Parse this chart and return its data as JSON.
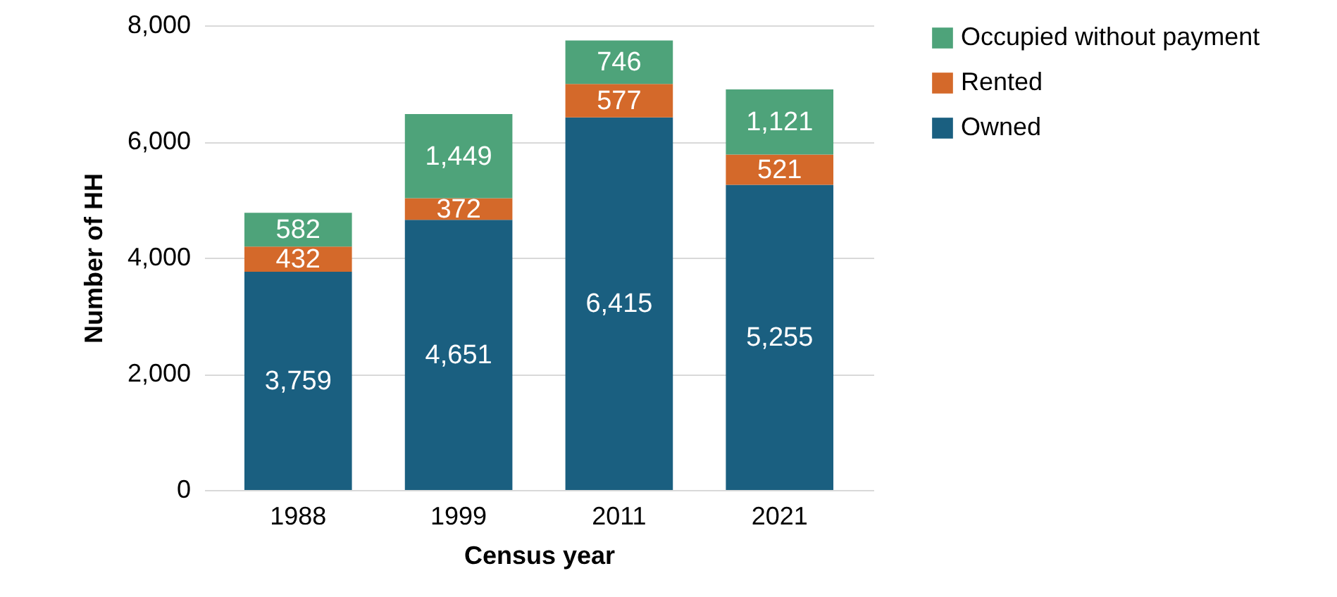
{
  "chart_data": {
    "type": "bar",
    "stacked": true,
    "xlabel": "Census year",
    "ylabel": "Number of HH",
    "categories": [
      "1988",
      "1999",
      "2011",
      "2021"
    ],
    "series": [
      {
        "name": "Owned",
        "color": "#1a5f80",
        "values": [
          3759,
          4651,
          6415,
          5255
        ],
        "value_labels": [
          "3,759",
          "4,651",
          "6,415",
          "5,255"
        ]
      },
      {
        "name": "Rented",
        "color": "#d4692a",
        "values": [
          432,
          372,
          577,
          521
        ],
        "value_labels": [
          "432",
          "372",
          "577",
          "521"
        ]
      },
      {
        "name": "Occupied without payment",
        "color": "#4ea37a",
        "values": [
          582,
          1449,
          746,
          1121
        ],
        "value_labels": [
          "582",
          "1,449",
          "746",
          "1,121"
        ]
      }
    ],
    "ylim": [
      0,
      8000
    ],
    "yticks": [
      {
        "value": 0,
        "label": "0"
      },
      {
        "value": 2000,
        "label": "2,000"
      },
      {
        "value": 4000,
        "label": "4,000"
      },
      {
        "value": 6000,
        "label": "6,000"
      },
      {
        "value": 8000,
        "label": "8,000"
      }
    ],
    "grid": "y",
    "legend": "right"
  }
}
